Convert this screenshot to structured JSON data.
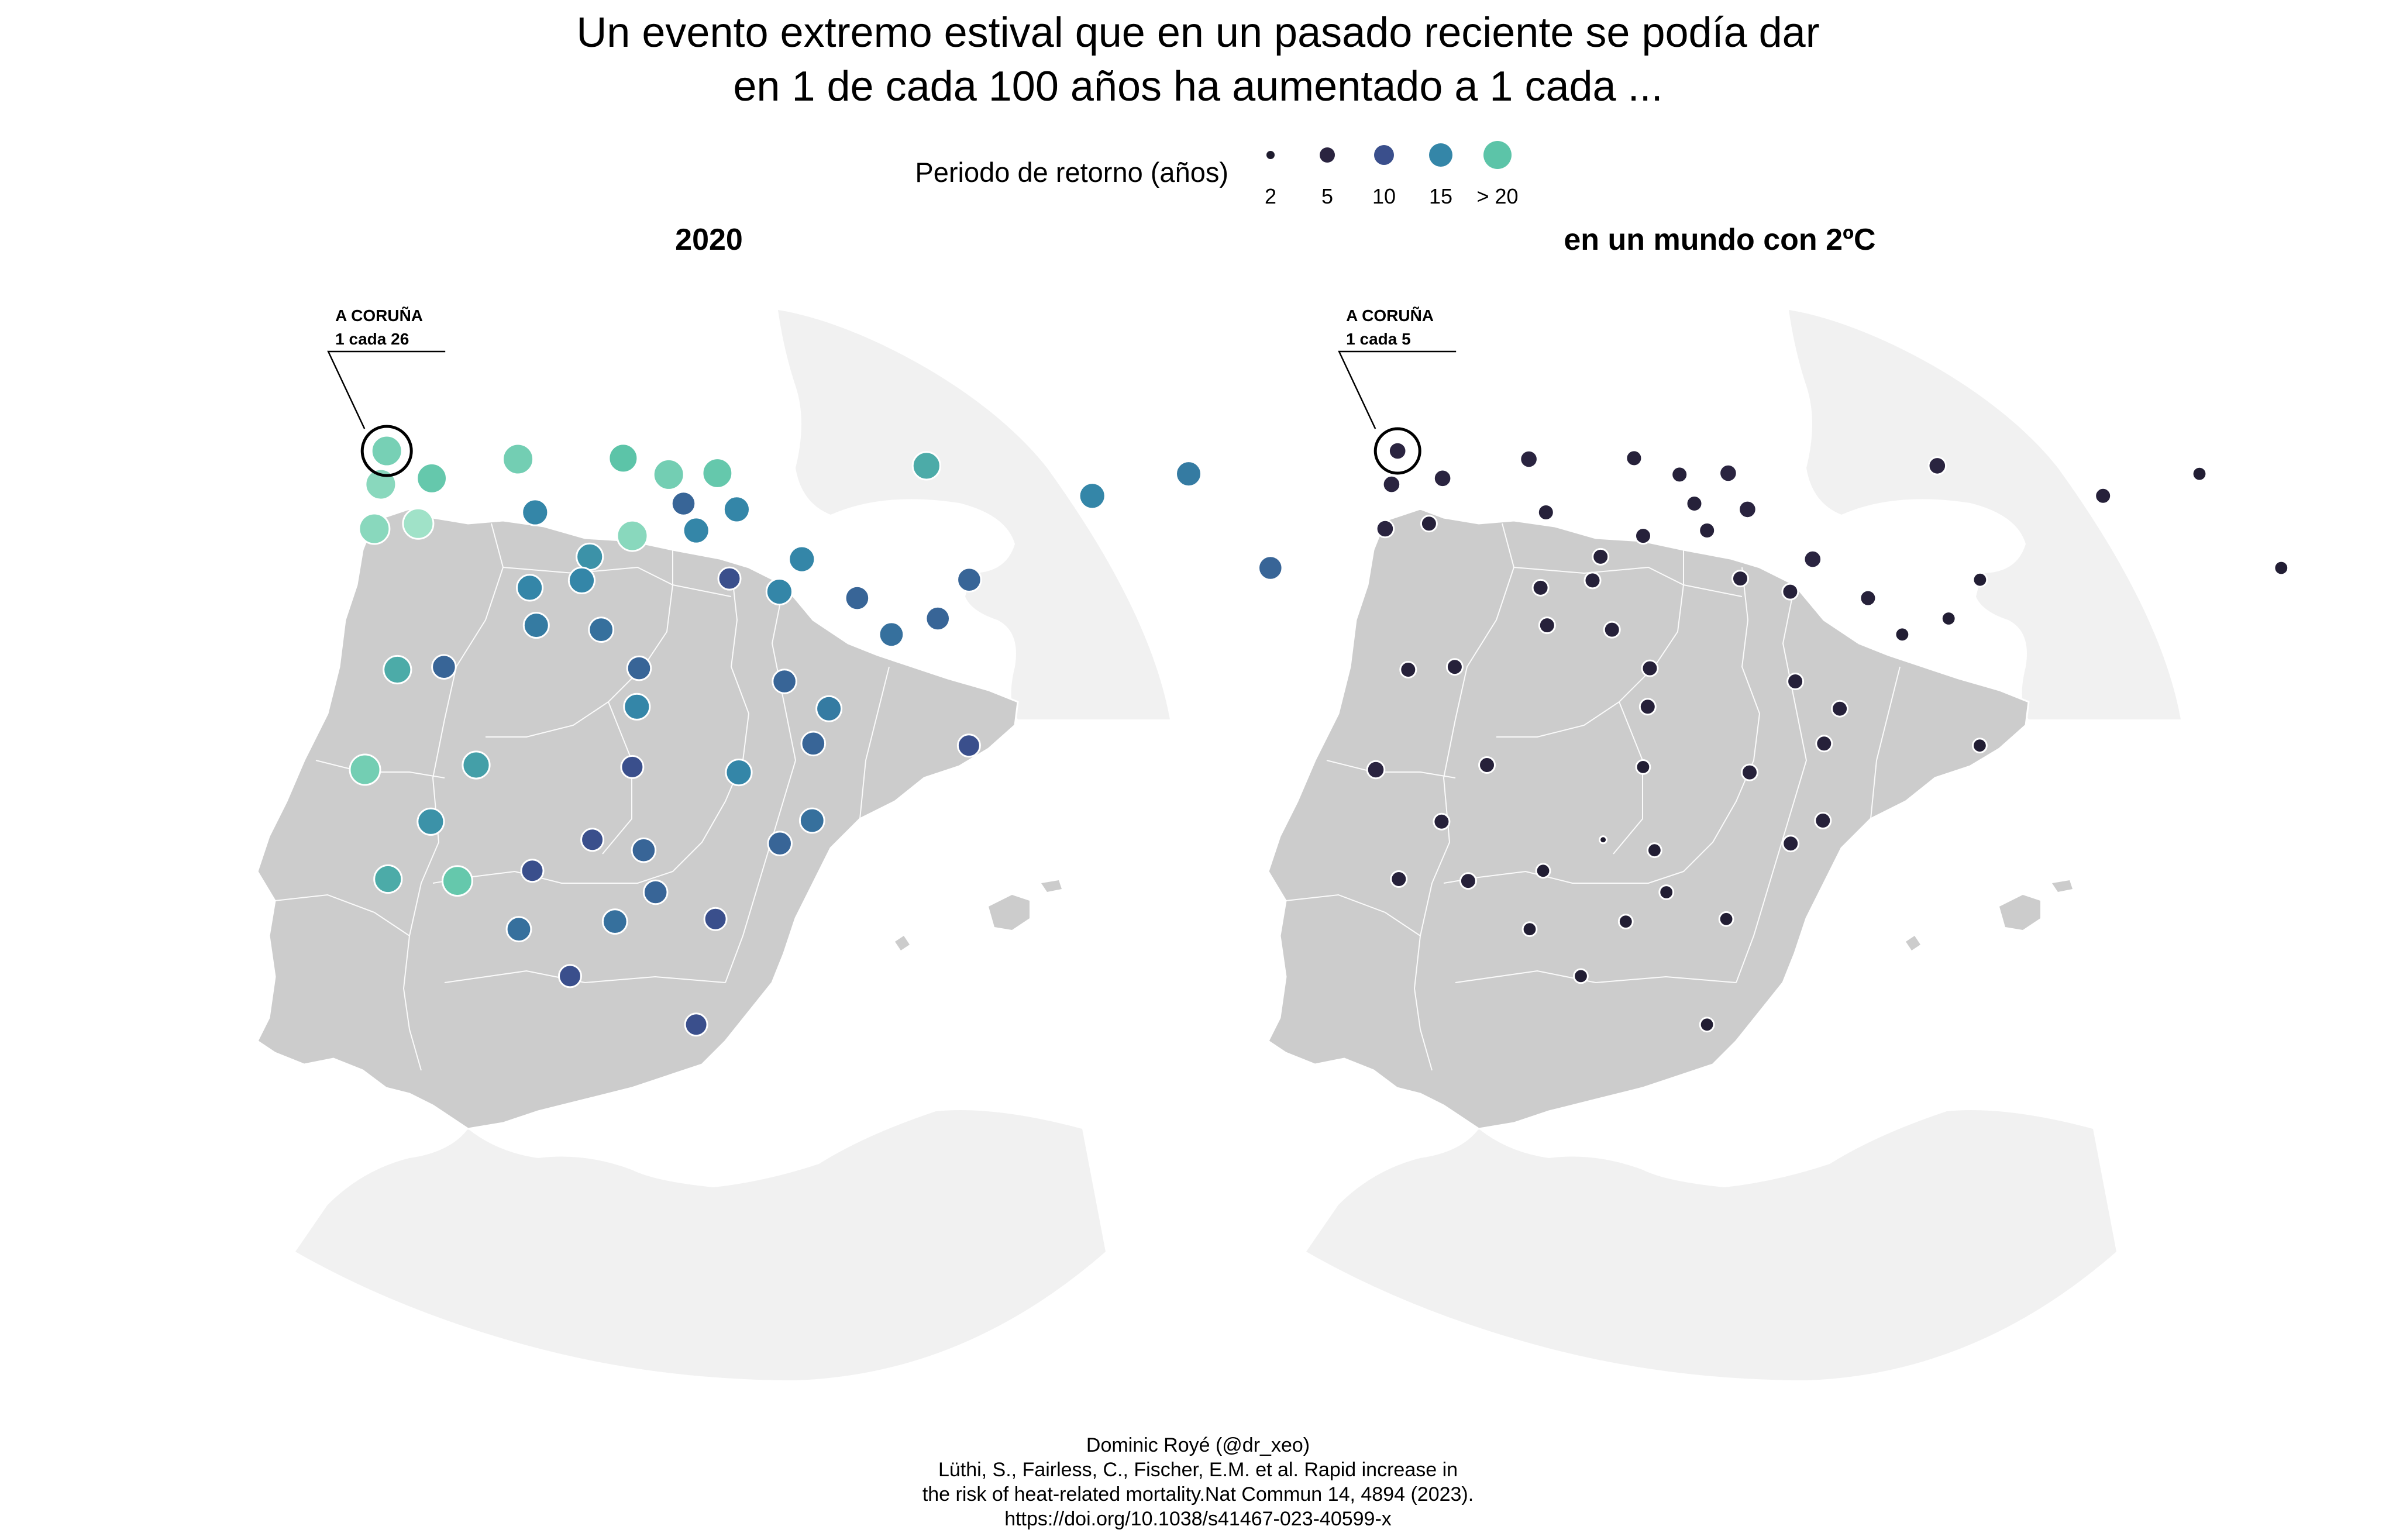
{
  "title_line1": "Un evento extremo estival que en un pasado reciente se podía dar",
  "title_line2": "en 1 de cada 100 años ha aumentado a 1 cada ...",
  "legend": {
    "label": "Periodo de retorno (años)",
    "items": [
      {
        "label": "2",
        "color": "#1e1b2e"
      },
      {
        "label": "5",
        "color": "#2a2440"
      },
      {
        "label": "10",
        "color": "#3a4f8c"
      },
      {
        "label": "15",
        "color": "#3486a8"
      },
      {
        "label": "> 20",
        "color": "#5cc4a8"
      }
    ]
  },
  "panels": [
    {
      "title": "2020",
      "annotation_city": "A CORUÑA",
      "annotation_value": "1 cada 26"
    },
    {
      "title": "en un mundo con 2ºC",
      "annotation_city": "A CORUÑA",
      "annotation_value": "1 cada 5"
    }
  ],
  "caption": {
    "line1": "Dominic Royé (@dr_xeo)",
    "line2": "Lüthi, S., Fairless, C., Fischer, E.M. et al. Rapid increase in",
    "line3": "the risk of heat-related mortality.Nat Commun 14, 4894 (2023).",
    "line4": "https://doi.org/10.1038/s41467-023-40599-x"
  },
  "map_data": {
    "stations_2020": [
      {
        "lon": -8.4,
        "lat": 43.37,
        "rp": 26
      },
      {
        "lon": -7.55,
        "lat": 43.01,
        "rp": 22
      },
      {
        "lon": -8.55,
        "lat": 42.88,
        "rp": 30
      },
      {
        "lon": -7.86,
        "lat": 42.34,
        "rp": 35
      },
      {
        "lon": -5.85,
        "lat": 43.36,
        "rp": 25
      },
      {
        "lon": -3.8,
        "lat": 43.46,
        "rp": 20
      },
      {
        "lon": -2.93,
        "lat": 43.26,
        "rp": 25
      },
      {
        "lon": -1.98,
        "lat": 43.32,
        "rp": 22
      },
      {
        "lon": -1.64,
        "lat": 42.81,
        "rp": 15
      },
      {
        "lon": -2.67,
        "lat": 42.85,
        "rp": 12
      },
      {
        "lon": 2.1,
        "lat": 43.6,
        "rp": 18
      },
      {
        "lon": 5.3,
        "lat": 43.3,
        "rp": 15
      },
      {
        "lon": 7.2,
        "lat": 43.7,
        "rp": 14
      },
      {
        "lon": 8.7,
        "lat": 42.4,
        "rp": 12
      },
      {
        "lon": -8.72,
        "lat": 42.23,
        "rp": 30
      },
      {
        "lon": -5.57,
        "lat": 42.6,
        "rp": 15
      },
      {
        "lon": -4.55,
        "lat": 42.0,
        "rp": 16
      },
      {
        "lon": -3.7,
        "lat": 42.34,
        "rp": 30
      },
      {
        "lon": -4.73,
        "lat": 41.65,
        "rp": 15
      },
      {
        "lon": -5.75,
        "lat": 41.5,
        "rp": 15
      },
      {
        "lon": -2.45,
        "lat": 42.47,
        "rp": 15
      },
      {
        "lon": -0.89,
        "lat": 41.65,
        "rp": 15
      },
      {
        "lon": -0.42,
        "lat": 42.14,
        "rp": 15
      },
      {
        "lon": 0.62,
        "lat": 41.62,
        "rp": 12
      },
      {
        "lon": 2.17,
        "lat": 41.39,
        "rp": 12
      },
      {
        "lon": -1.85,
        "lat": 41.8,
        "rp": 10
      },
      {
        "lon": -4.4,
        "lat": 40.95,
        "rp": 13
      },
      {
        "lon": -5.66,
        "lat": 40.96,
        "rp": 14
      },
      {
        "lon": -3.7,
        "lat": 40.42,
        "rp": 12
      },
      {
        "lon": 1.25,
        "lat": 41.12,
        "rp": 13
      },
      {
        "lon": 2.82,
        "lat": 41.98,
        "rp": 12
      },
      {
        "lon": -8.41,
        "lat": 40.2,
        "rp": 18
      },
      {
        "lon": -7.5,
        "lat": 40.28,
        "rp": 12
      },
      {
        "lon": -3.78,
        "lat": 39.86,
        "rp": 15
      },
      {
        "lon": -0.88,
        "lat": 40.35,
        "rp": 12
      },
      {
        "lon": -0.38,
        "lat": 39.47,
        "rp": 12
      },
      {
        "lon": -3.93,
        "lat": 38.98,
        "rp": 10
      },
      {
        "lon": -1.86,
        "lat": 38.99,
        "rp": 15
      },
      {
        "lon": -0.04,
        "lat": 39.99,
        "rp": 14
      },
      {
        "lon": 2.65,
        "lat": 39.57,
        "rp": 10
      },
      {
        "lon": -9.14,
        "lat": 38.72,
        "rp": 25
      },
      {
        "lon": -6.97,
        "lat": 38.88,
        "rp": 17
      },
      {
        "lon": -7.91,
        "lat": 38.02,
        "rp": 16
      },
      {
        "lon": -8.8,
        "lat": 37.15,
        "rp": 18
      },
      {
        "lon": -7.45,
        "lat": 37.18,
        "rp": 22
      },
      {
        "lon": -5.98,
        "lat": 37.39,
        "rp": 10
      },
      {
        "lon": -4.78,
        "lat": 37.89,
        "rp": 10
      },
      {
        "lon": -3.79,
        "lat": 37.78,
        "rp": 12
      },
      {
        "lon": -1.13,
        "lat": 37.99,
        "rp": 12
      },
      {
        "lon": -0.48,
        "lat": 38.35,
        "rp": 13
      },
      {
        "lon": -6.3,
        "lat": 36.53,
        "rp": 13
      },
      {
        "lon": -4.42,
        "lat": 36.72,
        "rp": 13
      },
      {
        "lon": -3.6,
        "lat": 37.18,
        "rp": 12
      },
      {
        "lon": -2.46,
        "lat": 36.84,
        "rp": 10
      },
      {
        "lon": -5.35,
        "lat": 35.89,
        "rp": 10
      },
      {
        "lon": -2.94,
        "lat": 35.29,
        "rp": 10
      }
    ],
    "stations_2c": [
      {
        "lon": -8.4,
        "lat": 43.37,
        "rp": 5
      },
      {
        "lon": -7.55,
        "lat": 43.01,
        "rp": 5
      },
      {
        "lon": -8.55,
        "lat": 42.88,
        "rp": 5
      },
      {
        "lon": -7.86,
        "lat": 42.34,
        "rp": 4
      },
      {
        "lon": -5.85,
        "lat": 43.36,
        "rp": 5
      },
      {
        "lon": -3.8,
        "lat": 43.46,
        "rp": 4
      },
      {
        "lon": -2.93,
        "lat": 43.26,
        "rp": 4
      },
      {
        "lon": -1.98,
        "lat": 43.32,
        "rp": 5
      },
      {
        "lon": -1.64,
        "lat": 42.81,
        "rp": 5
      },
      {
        "lon": -2.67,
        "lat": 42.85,
        "rp": 4
      },
      {
        "lon": 2.1,
        "lat": 43.6,
        "rp": 5
      },
      {
        "lon": 5.3,
        "lat": 43.3,
        "rp": 4
      },
      {
        "lon": 7.2,
        "lat": 43.7,
        "rp": 3
      },
      {
        "lon": 8.7,
        "lat": 42.4,
        "rp": 3
      },
      {
        "lon": -8.72,
        "lat": 42.23,
        "rp": 5
      },
      {
        "lon": -5.57,
        "lat": 42.6,
        "rp": 4
      },
      {
        "lon": -4.55,
        "lat": 42.0,
        "rp": 4
      },
      {
        "lon": -3.7,
        "lat": 42.34,
        "rp": 4
      },
      {
        "lon": -4.73,
        "lat": 41.65,
        "rp": 4
      },
      {
        "lon": -5.75,
        "lat": 41.5,
        "rp": 4
      },
      {
        "lon": -2.45,
        "lat": 42.47,
        "rp": 4
      },
      {
        "lon": -0.89,
        "lat": 41.65,
        "rp": 4
      },
      {
        "lon": -0.42,
        "lat": 42.14,
        "rp": 5
      },
      {
        "lon": 0.62,
        "lat": 41.62,
        "rp": 4
      },
      {
        "lon": 2.17,
        "lat": 41.39,
        "rp": 3
      },
      {
        "lon": -1.85,
        "lat": 41.8,
        "rp": 4
      },
      {
        "lon": -4.4,
        "lat": 40.95,
        "rp": 4
      },
      {
        "lon": -5.66,
        "lat": 40.96,
        "rp": 4
      },
      {
        "lon": -3.7,
        "lat": 40.42,
        "rp": 4
      },
      {
        "lon": 1.25,
        "lat": 41.12,
        "rp": 3
      },
      {
        "lon": 2.82,
        "lat": 41.98,
        "rp": 3
      },
      {
        "lon": -8.41,
        "lat": 40.2,
        "rp": 4
      },
      {
        "lon": -7.5,
        "lat": 40.28,
        "rp": 4
      },
      {
        "lon": -3.78,
        "lat": 39.86,
        "rp": 4
      },
      {
        "lon": -0.88,
        "lat": 40.35,
        "rp": 4
      },
      {
        "lon": -0.38,
        "lat": 39.47,
        "rp": 4
      },
      {
        "lon": -3.93,
        "lat": 38.98,
        "rp": 3
      },
      {
        "lon": -1.86,
        "lat": 38.99,
        "rp": 4
      },
      {
        "lon": -0.04,
        "lat": 39.99,
        "rp": 4
      },
      {
        "lon": 2.65,
        "lat": 39.57,
        "rp": 3
      },
      {
        "lon": -9.14,
        "lat": 38.72,
        "rp": 5
      },
      {
        "lon": -6.97,
        "lat": 38.88,
        "rp": 4
      },
      {
        "lon": -7.91,
        "lat": 38.02,
        "rp": 4
      },
      {
        "lon": -8.8,
        "lat": 37.15,
        "rp": 4
      },
      {
        "lon": -7.45,
        "lat": 37.18,
        "rp": 4
      },
      {
        "lon": -5.98,
        "lat": 37.39,
        "rp": 3
      },
      {
        "lon": -4.78,
        "lat": 37.89,
        "rp": 2
      },
      {
        "lon": -3.79,
        "lat": 37.78,
        "rp": 3
      },
      {
        "lon": -1.13,
        "lat": 37.99,
        "rp": 4
      },
      {
        "lon": -0.48,
        "lat": 38.35,
        "rp": 4
      },
      {
        "lon": -6.3,
        "lat": 36.53,
        "rp": 3
      },
      {
        "lon": -4.42,
        "lat": 36.72,
        "rp": 3
      },
      {
        "lon": -3.6,
        "lat": 37.18,
        "rp": 3
      },
      {
        "lon": -2.46,
        "lat": 36.84,
        "rp": 3
      },
      {
        "lon": -5.35,
        "lat": 35.89,
        "rp": 3
      },
      {
        "lon": -2.94,
        "lat": 35.29,
        "rp": 3
      }
    ]
  }
}
